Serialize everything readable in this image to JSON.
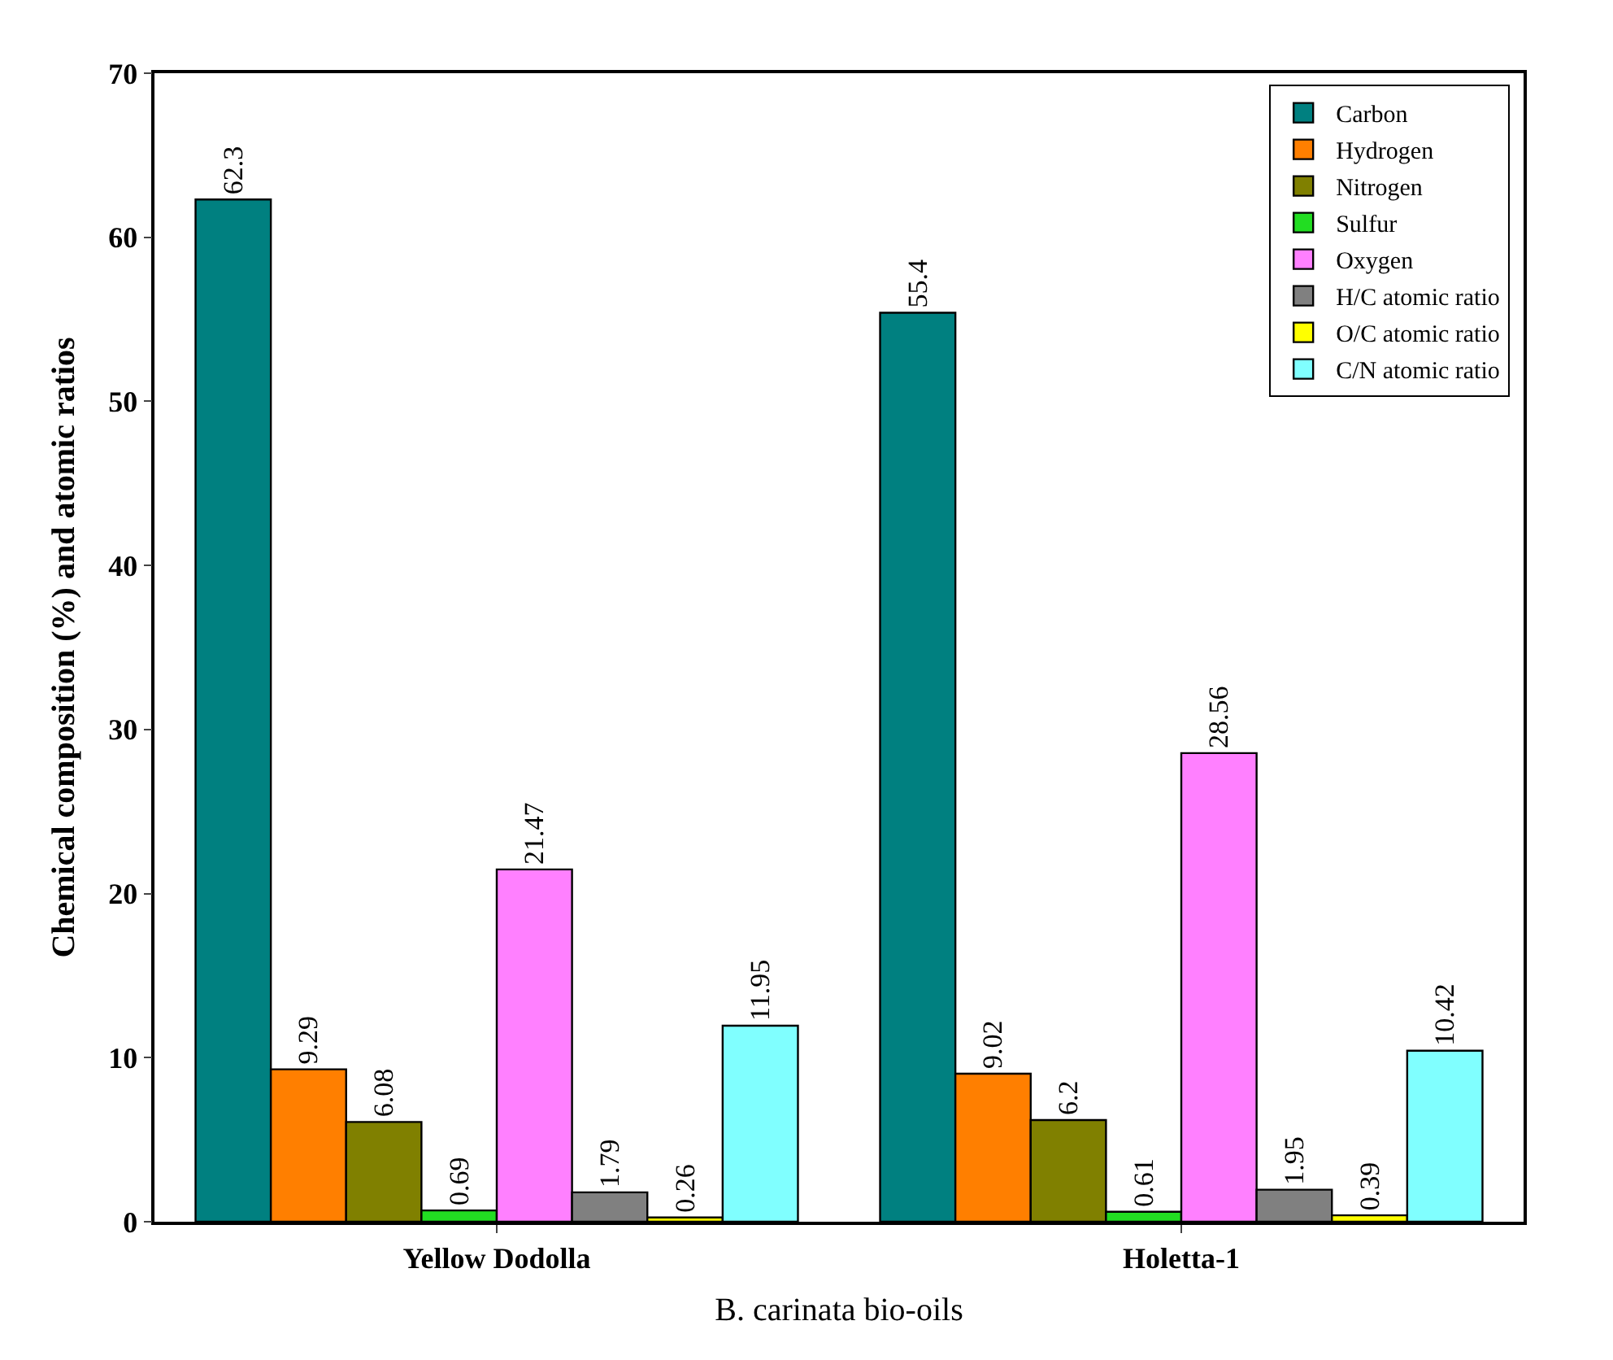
{
  "chart_data": {
    "type": "bar",
    "xlabel": "B. carinata bio-oils",
    "ylabel": "Chemical composition (%) and atomic ratios",
    "categories": [
      "Yellow Dodolla",
      "Holetta-1"
    ],
    "series": [
      {
        "name": "Carbon",
        "color": "#008080",
        "values": [
          62.3,
          55.4
        ]
      },
      {
        "name": "Hydrogen",
        "color": "#ff7f00",
        "values": [
          9.29,
          9.02
        ]
      },
      {
        "name": "Nitrogen",
        "color": "#808000",
        "values": [
          6.08,
          6.2
        ]
      },
      {
        "name": "Sulfur",
        "color": "#22dd22",
        "values": [
          0.69,
          0.61
        ]
      },
      {
        "name": "Oxygen",
        "color": "#ff80ff",
        "values": [
          21.47,
          28.56
        ]
      },
      {
        "name": "H/C atomic ratio",
        "color": "#808080",
        "values": [
          1.79,
          1.95
        ]
      },
      {
        "name": "O/C atomic ratio",
        "color": "#ffff00",
        "values": [
          0.26,
          0.39
        ]
      },
      {
        "name": "C/N atomic ratio",
        "color": "#80ffff",
        "values": [
          11.95,
          10.42
        ]
      }
    ],
    "ylim": [
      0,
      70
    ],
    "yticks": [
      0,
      10,
      20,
      30,
      40,
      50,
      60,
      70
    ],
    "data_labels": true,
    "legend": "top right"
  }
}
